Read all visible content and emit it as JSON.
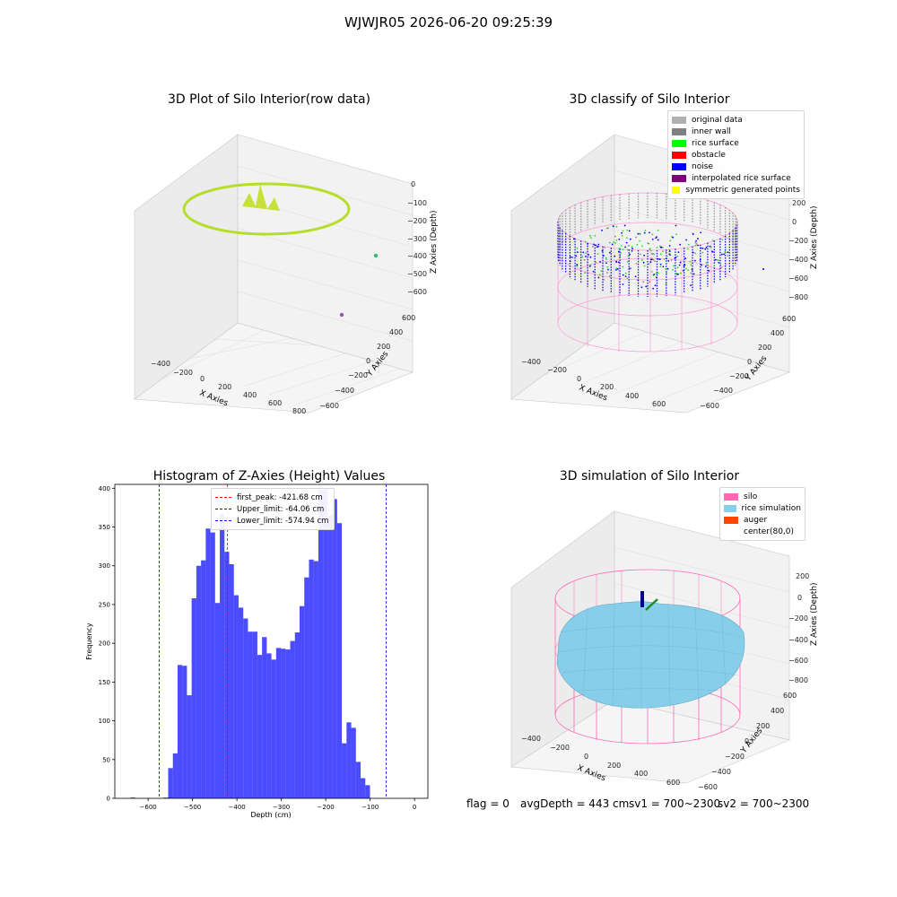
{
  "figure": {
    "suptitle": "WJWJR05 2026-06-20 09:25:39",
    "status": {
      "flag": "flag = 0",
      "avg_depth": "avgDepth = 443 cm",
      "sv1": "sv1 = 700~2300",
      "sv2": "sv2 = 700~2300"
    }
  },
  "panels": {
    "raw": {
      "title": "3D Plot of Silo Interior(row data)",
      "xlabel": "X Axies",
      "ylabel": "Y Axies",
      "zlabel": "Z Axies (Depth)",
      "xticks": [
        "−400",
        "−200",
        "0",
        "200",
        "400",
        "600",
        "800"
      ],
      "yticks": [
        "−600",
        "−400",
        "−200",
        "0",
        "200",
        "400",
        "600"
      ],
      "zticks": [
        "0",
        "−100",
        "−200",
        "−300",
        "−400",
        "−500",
        "−600"
      ],
      "colormap": "viridis"
    },
    "classify": {
      "title": "3D classify of Silo Interior",
      "xlabel": "X Axies",
      "ylabel": "Y Axies",
      "zlabel": "Z Axies (Depth)",
      "xticks": [
        "−400",
        "−200",
        "0",
        "200",
        "400",
        "600"
      ],
      "yticks": [
        "−600",
        "−400",
        "−200",
        "0",
        "200",
        "400",
        "600"
      ],
      "zticks": [
        "200",
        "0",
        "−200",
        "−400",
        "−600",
        "−800"
      ],
      "legend": [
        {
          "label": "original data",
          "color": "#b0b0b0"
        },
        {
          "label": "inner wall",
          "color": "#808080"
        },
        {
          "label": "rice surface",
          "color": "#00ff00"
        },
        {
          "label": "obstacle",
          "color": "#ff0000"
        },
        {
          "label": "noise",
          "color": "#0000ff"
        },
        {
          "label": "interpolated rice surface",
          "color": "#800080"
        },
        {
          "label": "symmetric generated points",
          "color": "#ffff00"
        }
      ]
    },
    "simulation": {
      "title": "3D simulation of Silo Interior",
      "xlabel": "X Axies",
      "ylabel": "Y Axies",
      "zlabel": "Z Axies (Depth)",
      "xticks": [
        "−400",
        "−200",
        "0",
        "200",
        "400",
        "600"
      ],
      "yticks": [
        "−600",
        "−400",
        "−200",
        "0",
        "200",
        "400",
        "600"
      ],
      "zticks": [
        "200",
        "0",
        "−200",
        "−400",
        "−600",
        "−800"
      ],
      "legend": [
        {
          "label": "silo",
          "color": "#ff69b4"
        },
        {
          "label": "rice simulation",
          "color": "#87ceeb"
        },
        {
          "label": "auger",
          "color": "#ff4500"
        },
        {
          "label": "center(80,0)",
          "color": ""
        }
      ]
    }
  },
  "chart_data": {
    "type": "bar",
    "title": "Histogram of Z-Axies (Height) Values",
    "xlabel": "Depth (cm)",
    "ylabel": "Frequency",
    "xlim": [
      -675,
      30
    ],
    "ylim": [
      0,
      405
    ],
    "xticks": [
      -600,
      -500,
      -400,
      -300,
      -200,
      -100,
      0
    ],
    "xtick_labels": [
      "−600",
      "−500",
      "−400",
      "−300",
      "−200",
      "−100",
      "0"
    ],
    "yticks": [
      0,
      50,
      100,
      150,
      200,
      250,
      300,
      350,
      400
    ],
    "bin_width": 10.57,
    "bin_start": -639.4,
    "values": [
      1,
      0,
      0,
      0,
      0,
      0,
      0,
      1,
      39,
      58,
      172,
      171,
      133,
      258,
      300,
      307,
      348,
      343,
      252,
      367,
      318,
      302,
      262,
      246,
      232,
      215,
      215,
      185,
      208,
      187,
      179,
      194,
      193,
      192,
      203,
      214,
      248,
      285,
      308,
      306,
      398,
      399,
      365,
      386,
      355,
      71,
      98,
      91,
      47,
      26,
      17
    ],
    "bar_color": "#0000ff",
    "bar_opacity": 0.7,
    "vlines": [
      {
        "label": "first_peak: -421.68 cm",
        "x": -421.68,
        "color": "#ff0000"
      },
      {
        "label": "Upper_limit: -64.06 cm",
        "x": -64.06,
        "color": "#0000ff"
      },
      {
        "label": "Lower_limit: -574.94 cm",
        "x": -574.94,
        "color": "#0000ff"
      }
    ],
    "legend_position": "top-center",
    "grid": false
  }
}
